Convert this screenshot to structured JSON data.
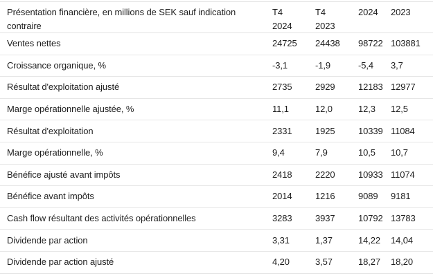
{
  "chart_data": {
    "type": "table",
    "title": "Présentation financière, en millions de SEK sauf indication contraire",
    "header": {
      "label": "Présentation financière, en millions de SEK sauf indication contraire",
      "columns": [
        {
          "line1": "T4",
          "line2": "2024"
        },
        {
          "line1": "T4",
          "line2": "2023"
        },
        {
          "line1": "2024",
          "line2": ""
        },
        {
          "line1": "2023",
          "line2": ""
        }
      ]
    },
    "rows": [
      {
        "label": "Ventes nettes",
        "values": [
          "24725",
          "24438",
          "98722",
          "103881"
        ]
      },
      {
        "label": "Croissance organique, %",
        "values": [
          "-3,1",
          "-1,9",
          "-5,4",
          "3,7"
        ]
      },
      {
        "label": "Résultat d'exploitation ajusté",
        "values": [
          "2735",
          "2929",
          "12183",
          "12977"
        ]
      },
      {
        "label": "Marge opérationnelle ajustée, %",
        "values": [
          "11,1",
          "12,0",
          "12,3",
          "12,5"
        ]
      },
      {
        "label": "Résultat d'exploitation",
        "values": [
          "2331",
          "1925",
          "10339",
          "11084"
        ]
      },
      {
        "label": "Marge opérationnelle, %",
        "values": [
          "9,4",
          "7,9",
          "10,5",
          "10,7"
        ]
      },
      {
        "label": "Bénéfice ajusté avant impôts",
        "values": [
          "2418",
          "2220",
          "10933",
          "11074"
        ]
      },
      {
        "label": "Bénéfice avant impôts",
        "values": [
          "2014",
          "1216",
          "9089",
          "9181"
        ]
      },
      {
        "label": "Cash flow résultant des activités opérationnelles",
        "values": [
          "3283",
          "3937",
          "10792",
          "13783"
        ]
      },
      {
        "label": "Dividende par action",
        "values": [
          "3,31",
          "1,37",
          "14,22",
          "14,04"
        ]
      },
      {
        "label": "Dividende par action ajusté",
        "values": [
          "4,20",
          "3,57",
          "18,27",
          "18,20"
        ]
      }
    ],
    "colors": {
      "text": "#1e1e1e",
      "divider": "#e6e6e6",
      "background": "#ffffff"
    }
  }
}
